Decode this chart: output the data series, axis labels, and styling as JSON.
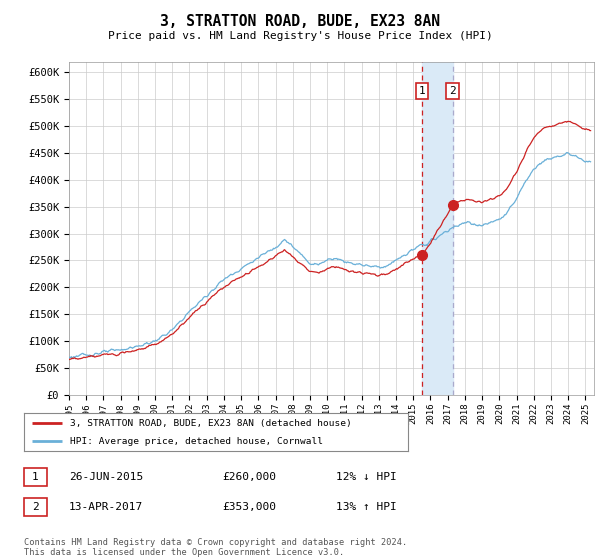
{
  "title": "3, STRATTON ROAD, BUDE, EX23 8AN",
  "subtitle": "Price paid vs. HM Land Registry's House Price Index (HPI)",
  "ylabel_ticks": [
    "£0",
    "£50K",
    "£100K",
    "£150K",
    "£200K",
    "£250K",
    "£300K",
    "£350K",
    "£400K",
    "£450K",
    "£500K",
    "£550K",
    "£600K"
  ],
  "ytick_values": [
    0,
    50000,
    100000,
    150000,
    200000,
    250000,
    300000,
    350000,
    400000,
    450000,
    500000,
    550000,
    600000
  ],
  "ylim": [
    0,
    620000
  ],
  "xlim_start": 1995.0,
  "xlim_end": 2025.5,
  "transaction1_date": 2015.49,
  "transaction1_price": 260000,
  "transaction1_label": "1",
  "transaction2_date": 2017.28,
  "transaction2_price": 353000,
  "transaction2_label": "2",
  "shade_color": "#daeaf7",
  "dashed_line1_color": "#cc2222",
  "dashed_line2_color": "#aaaacc",
  "red_line_color": "#cc2222",
  "blue_line_color": "#6ab0d8",
  "legend_label1": "3, STRATTON ROAD, BUDE, EX23 8AN (detached house)",
  "legend_label2": "HPI: Average price, detached house, Cornwall",
  "note1_label": "1",
  "note1_date": "26-JUN-2015",
  "note1_price": "£260,000",
  "note1_hpi": "12% ↓ HPI",
  "note2_label": "2",
  "note2_date": "13-APR-2017",
  "note2_price": "£353,000",
  "note2_hpi": "13% ↑ HPI",
  "footer": "Contains HM Land Registry data © Crown copyright and database right 2024.\nThis data is licensed under the Open Government Licence v3.0.",
  "background_color": "#ffffff",
  "grid_color": "#cccccc"
}
